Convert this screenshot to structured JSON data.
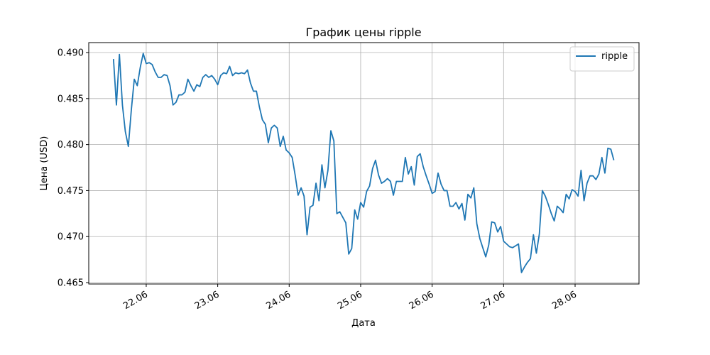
{
  "chart_data": {
    "type": "line",
    "title": "График цены ripple",
    "xlabel": "Дата",
    "ylabel": "Цена (USD)",
    "x": [
      21.542,
      21.583,
      21.625,
      21.667,
      21.708,
      21.75,
      21.792,
      21.833,
      21.875,
      21.917,
      21.958,
      22.0,
      22.042,
      22.083,
      22.125,
      22.167,
      22.208,
      22.25,
      22.292,
      22.333,
      22.375,
      22.417,
      22.458,
      22.5,
      22.542,
      22.583,
      22.625,
      22.667,
      22.708,
      22.75,
      22.792,
      22.833,
      22.875,
      22.917,
      22.958,
      23.0,
      23.042,
      23.083,
      23.125,
      23.167,
      23.208,
      23.25,
      23.292,
      23.333,
      23.375,
      23.417,
      23.458,
      23.5,
      23.542,
      23.583,
      23.625,
      23.667,
      23.708,
      23.75,
      23.792,
      23.833,
      23.875,
      23.917,
      23.958,
      24.0,
      24.042,
      24.083,
      24.125,
      24.167,
      24.208,
      24.25,
      24.292,
      24.333,
      24.375,
      24.417,
      24.458,
      24.5,
      24.542,
      24.583,
      24.625,
      24.667,
      24.708,
      24.75,
      24.792,
      24.833,
      24.875,
      24.917,
      24.958,
      25.0,
      25.042,
      25.083,
      25.125,
      25.167,
      25.208,
      25.25,
      25.292,
      25.333,
      25.375,
      25.417,
      25.458,
      25.5,
      25.542,
      25.583,
      25.625,
      25.667,
      25.708,
      25.75,
      25.792,
      25.833,
      25.875,
      25.917,
      25.958,
      26.0,
      26.042,
      26.083,
      26.125,
      26.167,
      26.208,
      26.25,
      26.292,
      26.333,
      26.375,
      26.417,
      26.458,
      26.5,
      26.542,
      26.583,
      26.625,
      26.667,
      26.708,
      26.75,
      26.792,
      26.833,
      26.875,
      26.917,
      26.958,
      27.0,
      27.042,
      27.083,
      27.125,
      27.167,
      27.208,
      27.25,
      27.292,
      27.333,
      27.375,
      27.417,
      27.458,
      27.5,
      27.542,
      27.583,
      27.625,
      27.667,
      27.708,
      27.75,
      27.792,
      27.833,
      27.875,
      27.917,
      27.958,
      28.0,
      28.042,
      28.083,
      28.125,
      28.167,
      28.208,
      28.25,
      28.292,
      28.333,
      28.375,
      28.417,
      28.458,
      28.5,
      28.542
    ],
    "series": [
      {
        "name": "ripple",
        "color": "#1f77b4",
        "values": [
          0.4893,
          0.4843,
          0.4898,
          0.4843,
          0.4814,
          0.4798,
          0.4838,
          0.4871,
          0.4864,
          0.4884,
          0.4899,
          0.4888,
          0.4889,
          0.4887,
          0.4879,
          0.4873,
          0.4873,
          0.4876,
          0.4875,
          0.4864,
          0.4843,
          0.4846,
          0.4854,
          0.4854,
          0.4857,
          0.4871,
          0.4864,
          0.4858,
          0.4865,
          0.4863,
          0.4873,
          0.4876,
          0.4873,
          0.4875,
          0.4871,
          0.4865,
          0.4875,
          0.4878,
          0.4877,
          0.4885,
          0.4875,
          0.4878,
          0.4877,
          0.4878,
          0.4877,
          0.4881,
          0.4867,
          0.4858,
          0.4858,
          0.4841,
          0.4827,
          0.4822,
          0.4802,
          0.4818,
          0.4821,
          0.4818,
          0.4798,
          0.4809,
          0.4794,
          0.4791,
          0.4786,
          0.4767,
          0.4745,
          0.4753,
          0.4744,
          0.4702,
          0.4732,
          0.4734,
          0.4758,
          0.4739,
          0.4778,
          0.4753,
          0.4772,
          0.4815,
          0.4804,
          0.4725,
          0.4727,
          0.4721,
          0.4715,
          0.4681,
          0.4687,
          0.4729,
          0.4719,
          0.4737,
          0.4732,
          0.4749,
          0.4755,
          0.4774,
          0.4783,
          0.4767,
          0.4758,
          0.476,
          0.4763,
          0.476,
          0.4745,
          0.476,
          0.476,
          0.476,
          0.4786,
          0.4768,
          0.4776,
          0.4756,
          0.4787,
          0.479,
          0.4776,
          0.4766,
          0.4757,
          0.4747,
          0.4749,
          0.4769,
          0.4757,
          0.475,
          0.475,
          0.4733,
          0.4733,
          0.4737,
          0.473,
          0.4736,
          0.4718,
          0.4746,
          0.4742,
          0.4753,
          0.4714,
          0.4698,
          0.4688,
          0.4678,
          0.4691,
          0.4716,
          0.4715,
          0.4705,
          0.4711,
          0.4695,
          0.4692,
          0.4689,
          0.4688,
          0.469,
          0.4692,
          0.4661,
          0.4667,
          0.4672,
          0.4676,
          0.4702,
          0.4682,
          0.4703,
          0.475,
          0.4744,
          0.4735,
          0.4725,
          0.4717,
          0.4733,
          0.473,
          0.4726,
          0.4746,
          0.4741,
          0.4751,
          0.4749,
          0.4744,
          0.4772,
          0.4739,
          0.4758,
          0.4766,
          0.4766,
          0.4762,
          0.4768,
          0.4786,
          0.4769,
          0.4796,
          0.4795,
          0.4783
        ]
      }
    ],
    "xlim": [
      21.196,
      28.894
    ],
    "ylim": [
      0.46485,
      0.49108
    ],
    "xticks": [
      {
        "value": 22,
        "label": "22.06"
      },
      {
        "value": 23,
        "label": "23.06"
      },
      {
        "value": 24,
        "label": "24.06"
      },
      {
        "value": 25,
        "label": "25.06"
      },
      {
        "value": 26,
        "label": "26.06"
      },
      {
        "value": 27,
        "label": "27.06"
      },
      {
        "value": 28,
        "label": "28.06"
      }
    ],
    "yticks": [
      0.465,
      {
        "value": 0.47,
        "label": "0.470"
      },
      0.475,
      {
        "value": 0.48,
        "label": "0.480"
      },
      0.485,
      {
        "value": 0.49,
        "label": "0.490"
      }
    ],
    "grid": true,
    "legend": "upper right"
  }
}
